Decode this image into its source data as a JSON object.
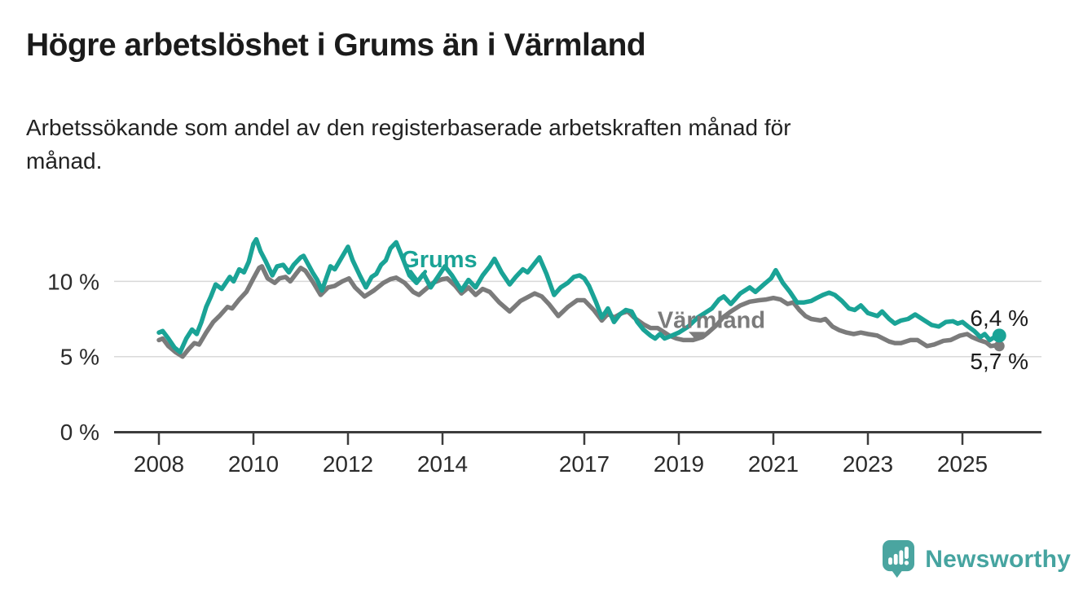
{
  "title": "Högre arbetslöshet i Grums än i Värmland",
  "subtitle": "Arbetssökande som andel av den registerbaserade arbetskraften månad för månad.",
  "branding": {
    "name": "Newsworthy",
    "icon": "newsworthy-speech-bubble-bar-chart-icon",
    "color": "#4AA5A0"
  },
  "chart_data": {
    "type": "line",
    "title": "Högre arbetslöshet i Grums än i Värmland",
    "subtitle": "Arbetssökande som andel av den registerbaserade arbetskraften månad för månad.",
    "unit": "%",
    "grid": "horizontal",
    "legend_position": "inline-labels",
    "x_axis": {
      "tick_labels": [
        "2008",
        "2010",
        "2012",
        "2014",
        "2017",
        "2019",
        "2021",
        "2023",
        "2025"
      ],
      "tick_values": [
        2008,
        2010,
        2012,
        2014,
        2017,
        2019,
        2021,
        2023,
        2025
      ],
      "range": [
        2007.05,
        2026.65
      ]
    },
    "y_axis": {
      "tick_labels": [
        "0 %",
        "5 %",
        "10 %"
      ],
      "tick_values": [
        0,
        5,
        10
      ],
      "gridline_values": [
        5,
        10
      ],
      "range": [
        0,
        13.6
      ]
    },
    "series": [
      {
        "name": "Värmland",
        "color": "#7B7B7B",
        "end_value": 5.7,
        "end_value_label": "5,7 %",
        "end_label_color": "#1a1a1a",
        "label_position": "below",
        "end_dot_radius": 6.5,
        "label_annotation": {
          "text": "Värmland",
          "year": 2019.69,
          "value": 6.9,
          "marker": "triangle-down",
          "marker_year": 2019.38,
          "marker_value": 6.05
        },
        "points": [
          [
            2008.0,
            6.1
          ],
          [
            2008.08,
            6.2
          ],
          [
            2008.2,
            5.7
          ],
          [
            2008.35,
            5.3
          ],
          [
            2008.5,
            5.0
          ],
          [
            2008.63,
            5.5
          ],
          [
            2008.75,
            5.9
          ],
          [
            2008.85,
            5.8
          ],
          [
            2009.0,
            6.6
          ],
          [
            2009.15,
            7.3
          ],
          [
            2009.28,
            7.7
          ],
          [
            2009.45,
            8.3
          ],
          [
            2009.55,
            8.2
          ],
          [
            2009.7,
            8.8
          ],
          [
            2009.85,
            9.3
          ],
          [
            2010.0,
            10.2
          ],
          [
            2010.12,
            10.9
          ],
          [
            2010.18,
            11.0
          ],
          [
            2010.3,
            10.2
          ],
          [
            2010.45,
            9.9
          ],
          [
            2010.55,
            10.2
          ],
          [
            2010.68,
            10.3
          ],
          [
            2010.78,
            10.0
          ],
          [
            2010.9,
            10.5
          ],
          [
            2011.0,
            10.9
          ],
          [
            2011.1,
            10.7
          ],
          [
            2011.25,
            10.0
          ],
          [
            2011.42,
            9.1
          ],
          [
            2011.58,
            9.6
          ],
          [
            2011.72,
            9.7
          ],
          [
            2011.88,
            10.0
          ],
          [
            2012.02,
            10.2
          ],
          [
            2012.15,
            9.6
          ],
          [
            2012.35,
            9.0
          ],
          [
            2012.55,
            9.4
          ],
          [
            2012.75,
            9.9
          ],
          [
            2012.9,
            10.15
          ],
          [
            2013.02,
            10.25
          ],
          [
            2013.2,
            9.9
          ],
          [
            2013.38,
            9.3
          ],
          [
            2013.5,
            9.1
          ],
          [
            2013.65,
            9.5
          ],
          [
            2013.8,
            9.9
          ],
          [
            2014.0,
            10.15
          ],
          [
            2014.1,
            10.2
          ],
          [
            2014.27,
            9.7
          ],
          [
            2014.4,
            9.2
          ],
          [
            2014.55,
            9.6
          ],
          [
            2014.7,
            9.1
          ],
          [
            2014.85,
            9.5
          ],
          [
            2015.0,
            9.3
          ],
          [
            2015.2,
            8.6
          ],
          [
            2015.42,
            8.0
          ],
          [
            2015.65,
            8.7
          ],
          [
            2015.95,
            9.2
          ],
          [
            2016.1,
            9.0
          ],
          [
            2016.25,
            8.5
          ],
          [
            2016.45,
            7.7
          ],
          [
            2016.65,
            8.3
          ],
          [
            2016.85,
            8.75
          ],
          [
            2017.0,
            8.75
          ],
          [
            2017.2,
            8.1
          ],
          [
            2017.37,
            7.4
          ],
          [
            2017.5,
            7.85
          ],
          [
            2017.63,
            7.6
          ],
          [
            2017.8,
            7.9
          ],
          [
            2017.92,
            8.0
          ],
          [
            2018.05,
            7.6
          ],
          [
            2018.25,
            7.15
          ],
          [
            2018.4,
            6.9
          ],
          [
            2018.55,
            6.9
          ],
          [
            2018.65,
            6.7
          ],
          [
            2018.8,
            6.4
          ],
          [
            2018.95,
            6.2
          ],
          [
            2019.1,
            6.1
          ],
          [
            2019.3,
            6.1
          ],
          [
            2019.5,
            6.3
          ],
          [
            2019.62,
            6.6
          ],
          [
            2019.8,
            7.1
          ],
          [
            2019.95,
            7.65
          ],
          [
            2020.1,
            8.0
          ],
          [
            2020.3,
            8.4
          ],
          [
            2020.5,
            8.65
          ],
          [
            2020.7,
            8.75
          ],
          [
            2020.85,
            8.8
          ],
          [
            2021.0,
            8.9
          ],
          [
            2021.15,
            8.8
          ],
          [
            2021.3,
            8.5
          ],
          [
            2021.42,
            8.6
          ],
          [
            2021.55,
            8.1
          ],
          [
            2021.68,
            7.7
          ],
          [
            2021.8,
            7.5
          ],
          [
            2022.0,
            7.4
          ],
          [
            2022.1,
            7.5
          ],
          [
            2022.25,
            7.0
          ],
          [
            2022.4,
            6.75
          ],
          [
            2022.55,
            6.6
          ],
          [
            2022.7,
            6.5
          ],
          [
            2022.85,
            6.6
          ],
          [
            2023.0,
            6.5
          ],
          [
            2023.2,
            6.4
          ],
          [
            2023.45,
            6.0
          ],
          [
            2023.57,
            5.9
          ],
          [
            2023.7,
            5.9
          ],
          [
            2023.9,
            6.1
          ],
          [
            2024.05,
            6.1
          ],
          [
            2024.25,
            5.7
          ],
          [
            2024.4,
            5.8
          ],
          [
            2024.6,
            6.05
          ],
          [
            2024.75,
            6.1
          ],
          [
            2024.95,
            6.4
          ],
          [
            2025.1,
            6.5
          ],
          [
            2025.2,
            6.3
          ],
          [
            2025.35,
            6.1
          ],
          [
            2025.5,
            5.95
          ],
          [
            2025.6,
            5.7
          ],
          [
            2025.7,
            5.75
          ],
          [
            2025.78,
            5.7
          ]
        ]
      },
      {
        "name": "Grums",
        "color": "#1AA396",
        "end_value": 6.4,
        "end_value_label": "6,4 %",
        "end_label_color": "#1a1a1a",
        "label_position": "above",
        "end_dot_radius": 8.5,
        "label_annotation": {
          "text": "Grums",
          "year": 2013.93,
          "value": 10.95,
          "marker": "chevron-down",
          "marker_year": 2013.48,
          "marker_value": 10.0
        },
        "points": [
          [
            2008.0,
            6.6
          ],
          [
            2008.08,
            6.7
          ],
          [
            2008.2,
            6.2
          ],
          [
            2008.33,
            5.6
          ],
          [
            2008.45,
            5.3
          ],
          [
            2008.58,
            6.2
          ],
          [
            2008.7,
            6.8
          ],
          [
            2008.8,
            6.5
          ],
          [
            2008.9,
            7.3
          ],
          [
            2009.0,
            8.3
          ],
          [
            2009.1,
            9.0
          ],
          [
            2009.2,
            9.8
          ],
          [
            2009.33,
            9.5
          ],
          [
            2009.5,
            10.3
          ],
          [
            2009.58,
            10.0
          ],
          [
            2009.7,
            10.8
          ],
          [
            2009.8,
            10.6
          ],
          [
            2009.9,
            11.3
          ],
          [
            2010.0,
            12.5
          ],
          [
            2010.06,
            12.8
          ],
          [
            2010.15,
            12.0
          ],
          [
            2010.25,
            11.4
          ],
          [
            2010.4,
            10.4
          ],
          [
            2010.5,
            11.0
          ],
          [
            2010.63,
            11.1
          ],
          [
            2010.75,
            10.6
          ],
          [
            2010.85,
            11.1
          ],
          [
            2011.0,
            11.6
          ],
          [
            2011.06,
            11.7
          ],
          [
            2011.25,
            10.6
          ],
          [
            2011.35,
            10.1
          ],
          [
            2011.45,
            9.4
          ],
          [
            2011.55,
            10.3
          ],
          [
            2011.63,
            11.0
          ],
          [
            2011.72,
            10.8
          ],
          [
            2011.85,
            11.5
          ],
          [
            2012.0,
            12.3
          ],
          [
            2012.1,
            11.4
          ],
          [
            2012.25,
            10.4
          ],
          [
            2012.38,
            9.6
          ],
          [
            2012.5,
            10.3
          ],
          [
            2012.6,
            10.5
          ],
          [
            2012.7,
            11.1
          ],
          [
            2012.8,
            11.4
          ],
          [
            2012.9,
            12.2
          ],
          [
            2013.02,
            12.6
          ],
          [
            2013.15,
            11.6
          ],
          [
            2013.3,
            10.4
          ],
          [
            2013.45,
            9.9
          ],
          [
            2013.6,
            10.5
          ],
          [
            2013.75,
            9.6
          ],
          [
            2013.9,
            10.3
          ],
          [
            2014.05,
            11.0
          ],
          [
            2014.2,
            10.4
          ],
          [
            2014.4,
            9.4
          ],
          [
            2014.55,
            10.1
          ],
          [
            2014.7,
            9.6
          ],
          [
            2014.85,
            10.4
          ],
          [
            2015.0,
            11.0
          ],
          [
            2015.1,
            11.5
          ],
          [
            2015.25,
            10.6
          ],
          [
            2015.42,
            9.8
          ],
          [
            2015.55,
            10.3
          ],
          [
            2015.7,
            10.8
          ],
          [
            2015.8,
            10.6
          ],
          [
            2015.9,
            11.0
          ],
          [
            2016.05,
            11.6
          ],
          [
            2016.2,
            10.5
          ],
          [
            2016.36,
            9.1
          ],
          [
            2016.5,
            9.6
          ],
          [
            2016.65,
            9.9
          ],
          [
            2016.78,
            10.3
          ],
          [
            2016.9,
            10.4
          ],
          [
            2017.0,
            10.2
          ],
          [
            2017.1,
            9.7
          ],
          [
            2017.25,
            8.6
          ],
          [
            2017.37,
            7.6
          ],
          [
            2017.5,
            8.2
          ],
          [
            2017.63,
            7.3
          ],
          [
            2017.75,
            7.8
          ],
          [
            2017.88,
            8.1
          ],
          [
            2018.0,
            8.0
          ],
          [
            2018.12,
            7.3
          ],
          [
            2018.25,
            6.8
          ],
          [
            2018.4,
            6.4
          ],
          [
            2018.5,
            6.2
          ],
          [
            2018.6,
            6.5
          ],
          [
            2018.7,
            6.2
          ],
          [
            2018.85,
            6.4
          ],
          [
            2019.0,
            6.6
          ],
          [
            2019.2,
            7.0
          ],
          [
            2019.4,
            7.6
          ],
          [
            2019.55,
            7.9
          ],
          [
            2019.7,
            8.2
          ],
          [
            2019.85,
            8.8
          ],
          [
            2019.95,
            9.0
          ],
          [
            2020.1,
            8.5
          ],
          [
            2020.3,
            9.2
          ],
          [
            2020.5,
            9.6
          ],
          [
            2020.62,
            9.3
          ],
          [
            2020.8,
            9.8
          ],
          [
            2020.95,
            10.2
          ],
          [
            2021.05,
            10.75
          ],
          [
            2021.2,
            9.9
          ],
          [
            2021.35,
            9.3
          ],
          [
            2021.5,
            8.6
          ],
          [
            2021.65,
            8.6
          ],
          [
            2021.8,
            8.7
          ],
          [
            2021.92,
            8.9
          ],
          [
            2022.05,
            9.1
          ],
          [
            2022.18,
            9.25
          ],
          [
            2022.3,
            9.1
          ],
          [
            2022.45,
            8.7
          ],
          [
            2022.6,
            8.2
          ],
          [
            2022.72,
            8.1
          ],
          [
            2022.85,
            8.4
          ],
          [
            2023.0,
            7.9
          ],
          [
            2023.2,
            7.7
          ],
          [
            2023.3,
            8.0
          ],
          [
            2023.45,
            7.5
          ],
          [
            2023.57,
            7.2
          ],
          [
            2023.7,
            7.4
          ],
          [
            2023.85,
            7.5
          ],
          [
            2024.0,
            7.8
          ],
          [
            2024.2,
            7.4
          ],
          [
            2024.35,
            7.1
          ],
          [
            2024.5,
            7.0
          ],
          [
            2024.65,
            7.3
          ],
          [
            2024.8,
            7.35
          ],
          [
            2024.9,
            7.2
          ],
          [
            2025.0,
            7.3
          ],
          [
            2025.12,
            7.0
          ],
          [
            2025.25,
            6.7
          ],
          [
            2025.38,
            6.3
          ],
          [
            2025.47,
            6.5
          ],
          [
            2025.58,
            6.1
          ],
          [
            2025.68,
            6.3
          ],
          [
            2025.78,
            6.4
          ]
        ]
      }
    ]
  }
}
